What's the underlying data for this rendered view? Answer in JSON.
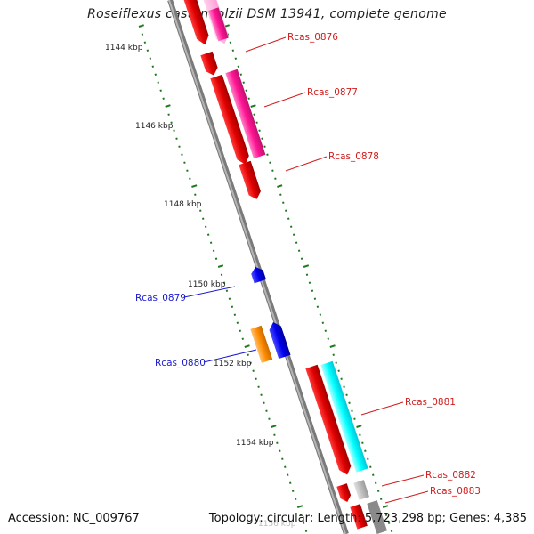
{
  "title": "Roseiflexus castenholzii DSM 13941, complete genome",
  "footer": {
    "accession": "Accession: NC_009767",
    "stats": "Topology: circular; Length: 5,723,298 bp; Genes: 4,385"
  },
  "tick_labels": [
    "1144 kbp",
    "1146 kbp",
    "1148 kbp",
    "1150 kbp",
    "1152 kbp",
    "1154 kbp",
    "1156 kbp"
  ],
  "genes": [
    {
      "name": "Rcas_0876",
      "color": "#d11d1d"
    },
    {
      "name": "Rcas_0877",
      "color": "#d11d1d"
    },
    {
      "name": "Rcas_0878",
      "color": "#d11d1d"
    },
    {
      "name": "Rcas_0879",
      "color": "#1a1ad0"
    },
    {
      "name": "Rcas_0880",
      "color": "#1a1ad0"
    },
    {
      "name": "Rcas_0881",
      "color": "#d11d1d"
    },
    {
      "name": "Rcas_0882",
      "color": "#d11d1d"
    },
    {
      "name": "Rcas_0883",
      "color": "#d11d1d"
    }
  ],
  "colors": {
    "backbone": "#8a8a8a",
    "tick_marks": "#1f7a1f",
    "cds_forward": "#e01010",
    "cds_other": "#ff1493",
    "cyan_feature": "#00ffff",
    "orange_feature": "#ff8c00",
    "blue_feature": "#0000ee",
    "gray_feature": "#b0b0b0"
  }
}
